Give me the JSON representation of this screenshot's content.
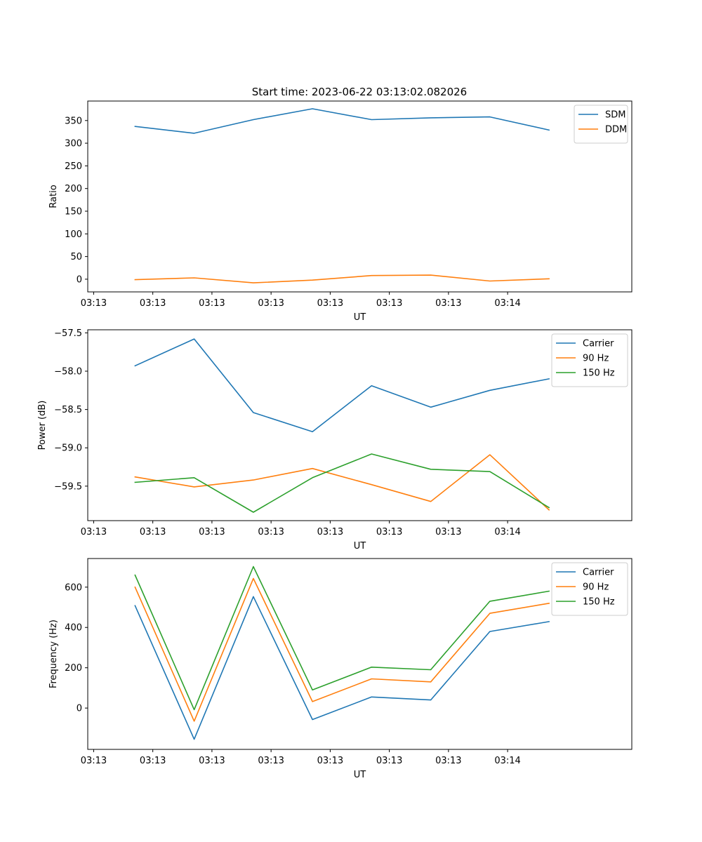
{
  "figure": {
    "title": "Start time: 2023-06-22 03:13:02.082026"
  },
  "chart_data": [
    {
      "type": "line",
      "title": "Start time: 2023-06-22 03:13:02.082026",
      "xlabel": "UT",
      "ylabel": "Ratio",
      "x_ticks": [
        "03:13",
        "03:13",
        "03:13",
        "03:13",
        "03:13",
        "03:13",
        "03:13",
        "03:14"
      ],
      "x_range": [
        0,
        9.2
      ],
      "ylim": [
        -28,
        393
      ],
      "y_ticks": [
        0,
        50,
        100,
        150,
        200,
        250,
        300,
        350
      ],
      "grid": false,
      "legend": "top-right",
      "x": [
        0.8,
        1.8,
        2.8,
        3.8,
        4.8,
        5.8,
        6.8,
        7.8
      ],
      "series": [
        {
          "name": "SDM",
          "color": "#1f77b4",
          "values": [
            337,
            322,
            352,
            376,
            352,
            356,
            358,
            329
          ]
        },
        {
          "name": "DDM",
          "color": "#ff7f0e",
          "values": [
            -1,
            3,
            -8,
            -2,
            8,
            9,
            -4,
            1
          ]
        }
      ]
    },
    {
      "type": "line",
      "title": "",
      "xlabel": "UT",
      "ylabel": "Power (dB)",
      "x_ticks": [
        "03:13",
        "03:13",
        "03:13",
        "03:13",
        "03:13",
        "03:13",
        "03:13",
        "03:14"
      ],
      "x_range": [
        0,
        9.2
      ],
      "ylim": [
        -59.95,
        -57.46
      ],
      "y_ticks": [
        -57.5,
        -58.0,
        -58.5,
        -59.0,
        -59.5
      ],
      "y_tick_labels": [
        "−57.5",
        "−58.0",
        "−58.5",
        "−59.0",
        "−59.5"
      ],
      "grid": false,
      "legend": "top-right",
      "x": [
        0.8,
        1.8,
        2.8,
        3.8,
        4.8,
        5.8,
        6.8,
        7.8
      ],
      "series": [
        {
          "name": "Carrier",
          "color": "#1f77b4",
          "values": [
            -57.93,
            -57.58,
            -58.54,
            -58.79,
            -58.19,
            -58.47,
            -58.25,
            -58.1
          ]
        },
        {
          "name": "90 Hz",
          "color": "#ff7f0e",
          "values": [
            -59.38,
            -59.51,
            -59.42,
            -59.27,
            -59.48,
            -59.7,
            -59.09,
            -59.81
          ]
        },
        {
          "name": "150 Hz",
          "color": "#2ca02c",
          "values": [
            -59.45,
            -59.39,
            -59.84,
            -59.39,
            -59.08,
            -59.28,
            -59.31,
            -59.78
          ]
        }
      ]
    },
    {
      "type": "line",
      "title": "",
      "xlabel": "UT",
      "ylabel": "Frequency (Hz)",
      "x_ticks": [
        "03:13",
        "03:13",
        "03:13",
        "03:13",
        "03:13",
        "03:13",
        "03:13",
        "03:14"
      ],
      "x_range": [
        0,
        9.2
      ],
      "ylim": [
        -205,
        742
      ],
      "y_ticks": [
        0,
        200,
        400,
        600
      ],
      "grid": false,
      "legend": "top-right",
      "x": [
        0.8,
        1.8,
        2.8,
        3.8,
        4.8,
        5.8,
        6.8,
        7.8
      ],
      "series": [
        {
          "name": "Carrier",
          "color": "#1f77b4",
          "values": [
            508,
            -155,
            553,
            -57,
            55,
            40,
            380,
            429
          ]
        },
        {
          "name": "90 Hz",
          "color": "#ff7f0e",
          "values": [
            600,
            -65,
            643,
            32,
            145,
            130,
            470,
            520
          ]
        },
        {
          "name": "150 Hz",
          "color": "#2ca02c",
          "values": [
            660,
            -8,
            702,
            90,
            203,
            190,
            530,
            580
          ]
        }
      ]
    }
  ]
}
